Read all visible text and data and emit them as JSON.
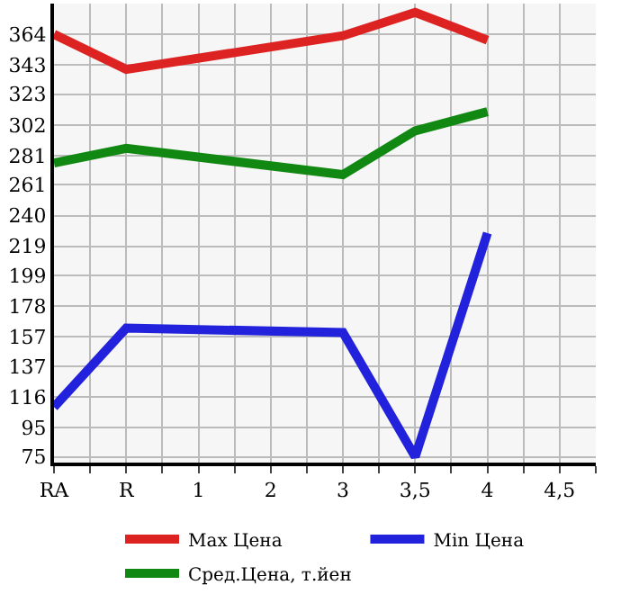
{
  "chart_data": {
    "type": "line",
    "categories": [
      "RA",
      "R",
      "1",
      "2",
      "3",
      "3,5",
      "4",
      "4,5"
    ],
    "series": [
      {
        "name": "Max Цена",
        "color": "#dd2222",
        "x": [
          "RA",
          "R",
          "3",
          "3,5",
          "4"
        ],
        "values": [
          364,
          340,
          363,
          379,
          360
        ]
      },
      {
        "name": "Min Цена",
        "color": "#2222dd",
        "x": [
          "RA",
          "R",
          "3",
          "3,5",
          "4"
        ],
        "values": [
          109,
          163,
          160,
          75,
          228
        ]
      },
      {
        "name": "Сред.Цена, т.йен",
        "color": "#118811",
        "x": [
          "RA",
          "R",
          "3",
          "3,5",
          "4"
        ],
        "values": [
          276,
          286,
          268,
          298,
          311
        ]
      }
    ],
    "ylim": [
      71,
      385
    ],
    "yticks": [
      75,
      95,
      116,
      137,
      157,
      178,
      199,
      219,
      240,
      261,
      281,
      302,
      323,
      343,
      364
    ],
    "grid": true,
    "legend": "bottom",
    "marker": "none",
    "line_style": "solid"
  }
}
